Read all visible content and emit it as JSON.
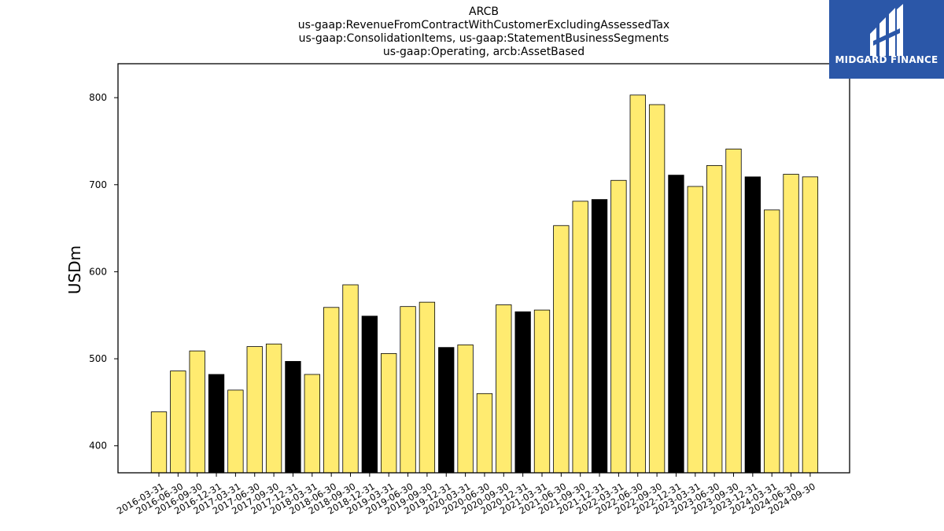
{
  "title_lines": [
    "ARCB",
    "us-gaap:RevenueFromContractWithCustomerExcludingAssessedTax",
    "us-gaap:ConsolidationItems, us-gaap:StatementBusinessSegments",
    "us-gaap:Operating, arcb:AssetBased"
  ],
  "logo": {
    "text": "MIDGARD FINANCE",
    "bg_color": "#2b57a8",
    "text_color": "#ffffff"
  },
  "chart_data": {
    "type": "bar",
    "ylabel": "USDm",
    "xlabel": "",
    "ylim": [
      369,
      839
    ],
    "yticks": [
      400,
      500,
      600,
      700,
      800
    ],
    "grid": false,
    "colors": {
      "default": "#ffeb70",
      "highlight": "#000000",
      "edge": "#000000"
    },
    "categories": [
      "2016-03-31",
      "2016-06-30",
      "2016-09-30",
      "2016-12-31",
      "2017-03-31",
      "2017-06-30",
      "2017-09-30",
      "2017-12-31",
      "2018-03-31",
      "2018-06-30",
      "2018-09-30",
      "2018-12-31",
      "2019-03-31",
      "2019-06-30",
      "2019-09-30",
      "2019-12-31",
      "2020-03-31",
      "2020-06-30",
      "2020-09-30",
      "2020-12-31",
      "2021-03-31",
      "2021-06-30",
      "2021-09-30",
      "2021-12-31",
      "2022-03-31",
      "2022-06-30",
      "2022-09-30",
      "2022-12-31",
      "2023-03-31",
      "2023-06-30",
      "2023-09-30",
      "2023-12-31",
      "2024-03-31",
      "2024-06-30",
      "2024-09-30"
    ],
    "values": [
      439,
      486,
      509,
      482,
      464,
      514,
      517,
      497,
      482,
      559,
      585,
      549,
      506,
      560,
      565,
      513,
      516,
      460,
      562,
      554,
      556,
      653,
      681,
      683,
      705,
      803,
      792,
      711,
      698,
      722,
      741,
      709,
      671,
      712,
      709
    ],
    "highlighted": [
      "2016-12-31",
      "2017-12-31",
      "2018-12-31",
      "2019-12-31",
      "2020-12-31",
      "2021-12-31",
      "2022-12-31",
      "2023-12-31"
    ]
  }
}
